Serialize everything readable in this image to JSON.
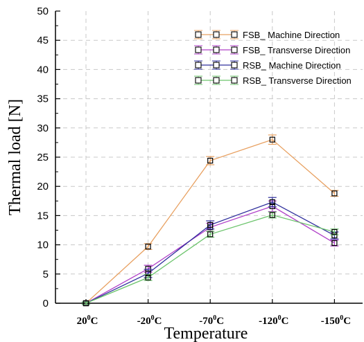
{
  "chart_data": {
    "type": "line",
    "categories": [
      "20°C",
      "-20°C",
      "-70°C",
      "-120°C",
      "-150°C"
    ],
    "category_parts": [
      {
        "num": "20",
        "sup": "0",
        "unit": "C"
      },
      {
        "num": "-20",
        "sup": "0",
        "unit": "C"
      },
      {
        "num": "-70",
        "sup": "0",
        "unit": "C"
      },
      {
        "num": "-120",
        "sup": "0",
        "unit": "C"
      },
      {
        "num": "-150",
        "sup": "0",
        "unit": "C"
      }
    ],
    "xlabel": "Temperature",
    "ylabel": "Thermal load  [N]",
    "ylim": [
      0,
      50
    ],
    "yticks": [
      "0",
      "5",
      "10",
      "15",
      "20",
      "25",
      "30",
      "35",
      "40",
      "45",
      "50"
    ],
    "grid": true,
    "legend_position": "top-right",
    "series": [
      {
        "name": "FSB_ Machine Direction",
        "color": "#e8a060",
        "values": [
          0,
          9.7,
          24.4,
          28.0,
          18.8
        ],
        "errors": [
          0.2,
          0.5,
          0.7,
          0.8,
          0.5
        ]
      },
      {
        "name": "FSB_ Transverse Direction",
        "color": "#b040c8",
        "values": [
          0,
          5.9,
          13.0,
          16.6,
          10.3
        ],
        "errors": [
          0.2,
          0.6,
          0.7,
          0.9,
          0.5
        ]
      },
      {
        "name": "RSB_ Machine Direction",
        "color": "#2e2e9c",
        "values": [
          0,
          5.1,
          13.4,
          17.3,
          11.6
        ],
        "errors": [
          0.2,
          0.7,
          0.7,
          0.8,
          0.6
        ]
      },
      {
        "name": "RSB_ Transverse Direction",
        "color": "#6cc46c",
        "values": [
          0,
          4.4,
          11.8,
          15.1,
          12.2
        ],
        "errors": [
          0.2,
          0.5,
          0.5,
          0.5,
          0.5
        ]
      }
    ]
  }
}
